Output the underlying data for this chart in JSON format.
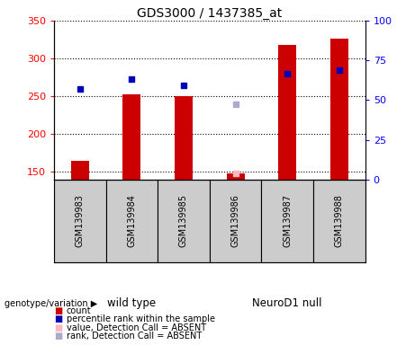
{
  "title": "GDS3000 / 1437385_at",
  "samples": [
    "GSM139983",
    "GSM139984",
    "GSM139985",
    "GSM139986",
    "GSM139987",
    "GSM139988"
  ],
  "counts": [
    165,
    252,
    250,
    148,
    318,
    326
  ],
  "percentile_ranks_left": [
    260,
    273,
    265,
    null,
    280,
    285
  ],
  "absent_value": [
    null,
    null,
    null,
    148,
    null,
    null
  ],
  "absent_rank_left": [
    null,
    null,
    null,
    240,
    null,
    null
  ],
  "ylim_left": [
    140,
    350
  ],
  "ylim_right": [
    0,
    100
  ],
  "yticks_left": [
    150,
    200,
    250,
    300,
    350
  ],
  "yticks_right": [
    0,
    25,
    50,
    75,
    100
  ],
  "bar_color": "#CC0000",
  "rank_color": "#0000BB",
  "absent_val_color": "#FFB6C1",
  "absent_rank_color": "#AAAACC",
  "bar_width": 0.35,
  "left_tick_color": "red",
  "right_tick_color": "blue",
  "sample_bg": "#CCCCCC",
  "plot_bg": "white",
  "group_wt_color": "#77EE77",
  "group_nd_color": "#77EE77",
  "legend_items": [
    {
      "label": "count",
      "color": "#CC0000"
    },
    {
      "label": "percentile rank within the sample",
      "color": "#0000BB"
    },
    {
      "label": "value, Detection Call = ABSENT",
      "color": "#FFB6C1"
    },
    {
      "label": "rank, Detection Call = ABSENT",
      "color": "#AAAACC"
    }
  ]
}
